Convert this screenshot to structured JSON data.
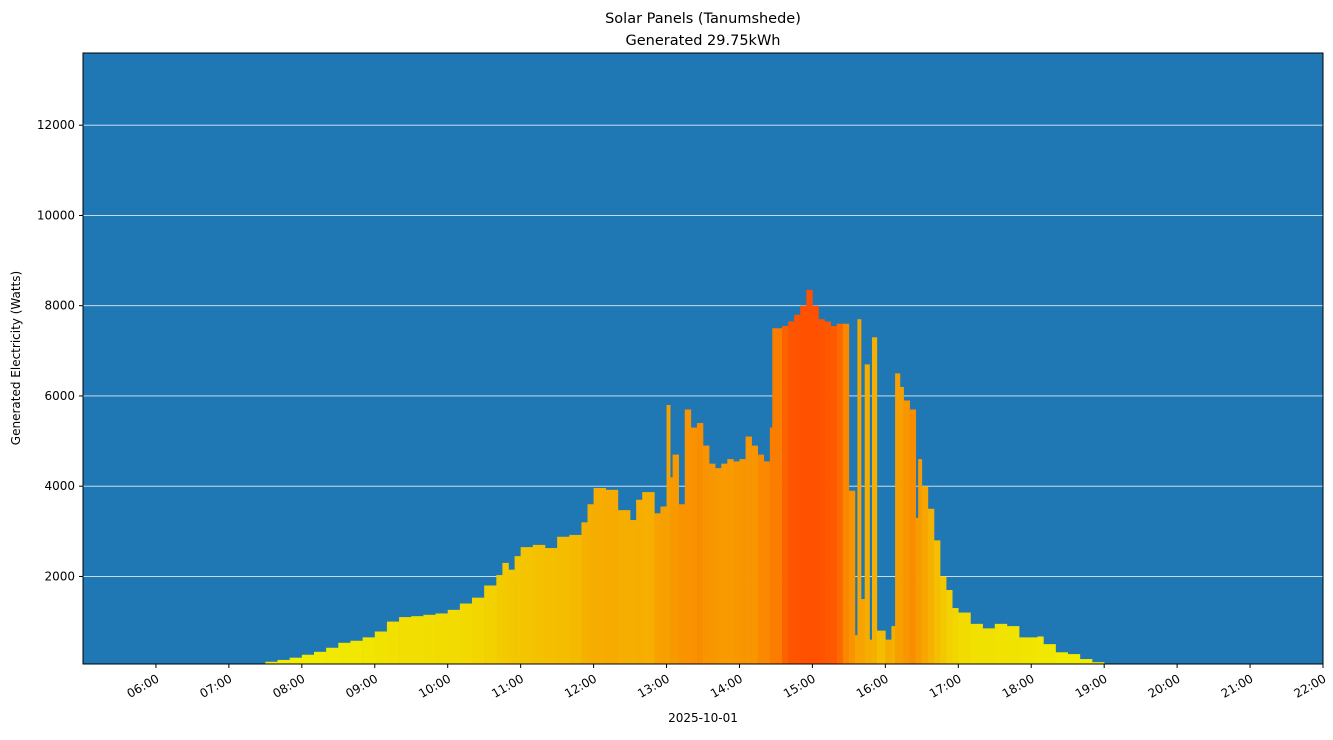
{
  "chart_data": {
    "type": "bar",
    "title": "Solar Panels (Tanumshede)",
    "subtitle": "Generated 29.75kWh",
    "xlabel": "2025-10-01",
    "ylabel": "Generated Electricity (Watts)",
    "xlim": [
      "05:00",
      "22:00"
    ],
    "ylim": [
      60,
      13600
    ],
    "grid": "horizontal",
    "colors": {
      "background": "#1f77b4",
      "grid": "#ffffff",
      "low": "#f0f000",
      "high": "#ff5000"
    },
    "x_ticks": [
      "06:00",
      "07:00",
      "08:00",
      "09:00",
      "10:00",
      "11:00",
      "12:00",
      "13:00",
      "14:00",
      "15:00",
      "16:00",
      "17:00",
      "18:00",
      "19:00",
      "20:00",
      "21:00",
      "22:00"
    ],
    "y_ticks": [
      2000,
      4000,
      6000,
      8000,
      10000,
      12000
    ],
    "points": [
      [
        "07:20",
        70
      ],
      [
        "07:30",
        110
      ],
      [
        "07:40",
        150
      ],
      [
        "07:50",
        200
      ],
      [
        "08:00",
        265
      ],
      [
        "08:10",
        330
      ],
      [
        "08:20",
        420
      ],
      [
        "08:30",
        530
      ],
      [
        "08:40",
        575
      ],
      [
        "08:50",
        650
      ],
      [
        "09:00",
        780
      ],
      [
        "09:10",
        1000
      ],
      [
        "09:20",
        1100
      ],
      [
        "09:30",
        1120
      ],
      [
        "09:40",
        1150
      ],
      [
        "09:50",
        1180
      ],
      [
        "10:00",
        1260
      ],
      [
        "10:10",
        1400
      ],
      [
        "10:20",
        1530
      ],
      [
        "10:30",
        1800
      ],
      [
        "10:40",
        2030
      ],
      [
        "10:45",
        2300
      ],
      [
        "10:50",
        2150
      ],
      [
        "10:55",
        2450
      ],
      [
        "11:00",
        2650
      ],
      [
        "11:10",
        2700
      ],
      [
        "11:20",
        2630
      ],
      [
        "11:30",
        2880
      ],
      [
        "11:40",
        2920
      ],
      [
        "11:50",
        3200
      ],
      [
        "11:55",
        3600
      ],
      [
        "12:00",
        3960
      ],
      [
        "12:10",
        3920
      ],
      [
        "12:20",
        3470
      ],
      [
        "12:30",
        3250
      ],
      [
        "12:35",
        3700
      ],
      [
        "12:40",
        3870
      ],
      [
        "12:50",
        3400
      ],
      [
        "12:55",
        3550
      ],
      [
        "13:00",
        5800
      ],
      [
        "13:03",
        4200
      ],
      [
        "13:05",
        4700
      ],
      [
        "13:10",
        3600
      ],
      [
        "13:15",
        5700
      ],
      [
        "13:20",
        5300
      ],
      [
        "13:25",
        5400
      ],
      [
        "13:30",
        4900
      ],
      [
        "13:35",
        4500
      ],
      [
        "13:40",
        4400
      ],
      [
        "13:45",
        4500
      ],
      [
        "13:50",
        4600
      ],
      [
        "13:55",
        4550
      ],
      [
        "14:00",
        4600
      ],
      [
        "14:05",
        5100
      ],
      [
        "14:10",
        4900
      ],
      [
        "14:15",
        4700
      ],
      [
        "14:20",
        4550
      ],
      [
        "14:25",
        5300
      ],
      [
        "14:27",
        7500
      ],
      [
        "14:35",
        7550
      ],
      [
        "14:40",
        7650
      ],
      [
        "14:45",
        7800
      ],
      [
        "14:50",
        8000
      ],
      [
        "14:55",
        8350
      ],
      [
        "15:00",
        8000
      ],
      [
        "15:05",
        7700
      ],
      [
        "15:10",
        7650
      ],
      [
        "15:15",
        7550
      ],
      [
        "15:20",
        7600
      ],
      [
        "15:25",
        7600
      ],
      [
        "15:30",
        3900
      ],
      [
        "15:35",
        700
      ],
      [
        "15:37",
        7700
      ],
      [
        "15:40",
        1500
      ],
      [
        "15:43",
        6700
      ],
      [
        "15:47",
        600
      ],
      [
        "15:49",
        7300
      ],
      [
        "15:53",
        800
      ],
      [
        "16:00",
        600
      ],
      [
        "16:05",
        900
      ],
      [
        "16:08",
        6500
      ],
      [
        "16:12",
        6200
      ],
      [
        "16:15",
        5900
      ],
      [
        "16:20",
        5700
      ],
      [
        "16:25",
        3300
      ],
      [
        "16:27",
        4600
      ],
      [
        "16:30",
        4000
      ],
      [
        "16:35",
        3500
      ],
      [
        "16:40",
        2800
      ],
      [
        "16:45",
        2000
      ],
      [
        "16:50",
        1700
      ],
      [
        "16:55",
        1300
      ],
      [
        "17:00",
        1200
      ],
      [
        "17:10",
        950
      ],
      [
        "17:20",
        850
      ],
      [
        "17:30",
        950
      ],
      [
        "17:40",
        900
      ],
      [
        "17:50",
        650
      ],
      [
        "18:00",
        650
      ],
      [
        "18:05",
        670
      ],
      [
        "18:10",
        500
      ],
      [
        "18:20",
        320
      ],
      [
        "18:30",
        280
      ],
      [
        "18:40",
        170
      ],
      [
        "18:50",
        100
      ],
      [
        "19:00",
        55
      ],
      [
        "19:10",
        30
      ]
    ],
    "end_time": "19:15"
  }
}
